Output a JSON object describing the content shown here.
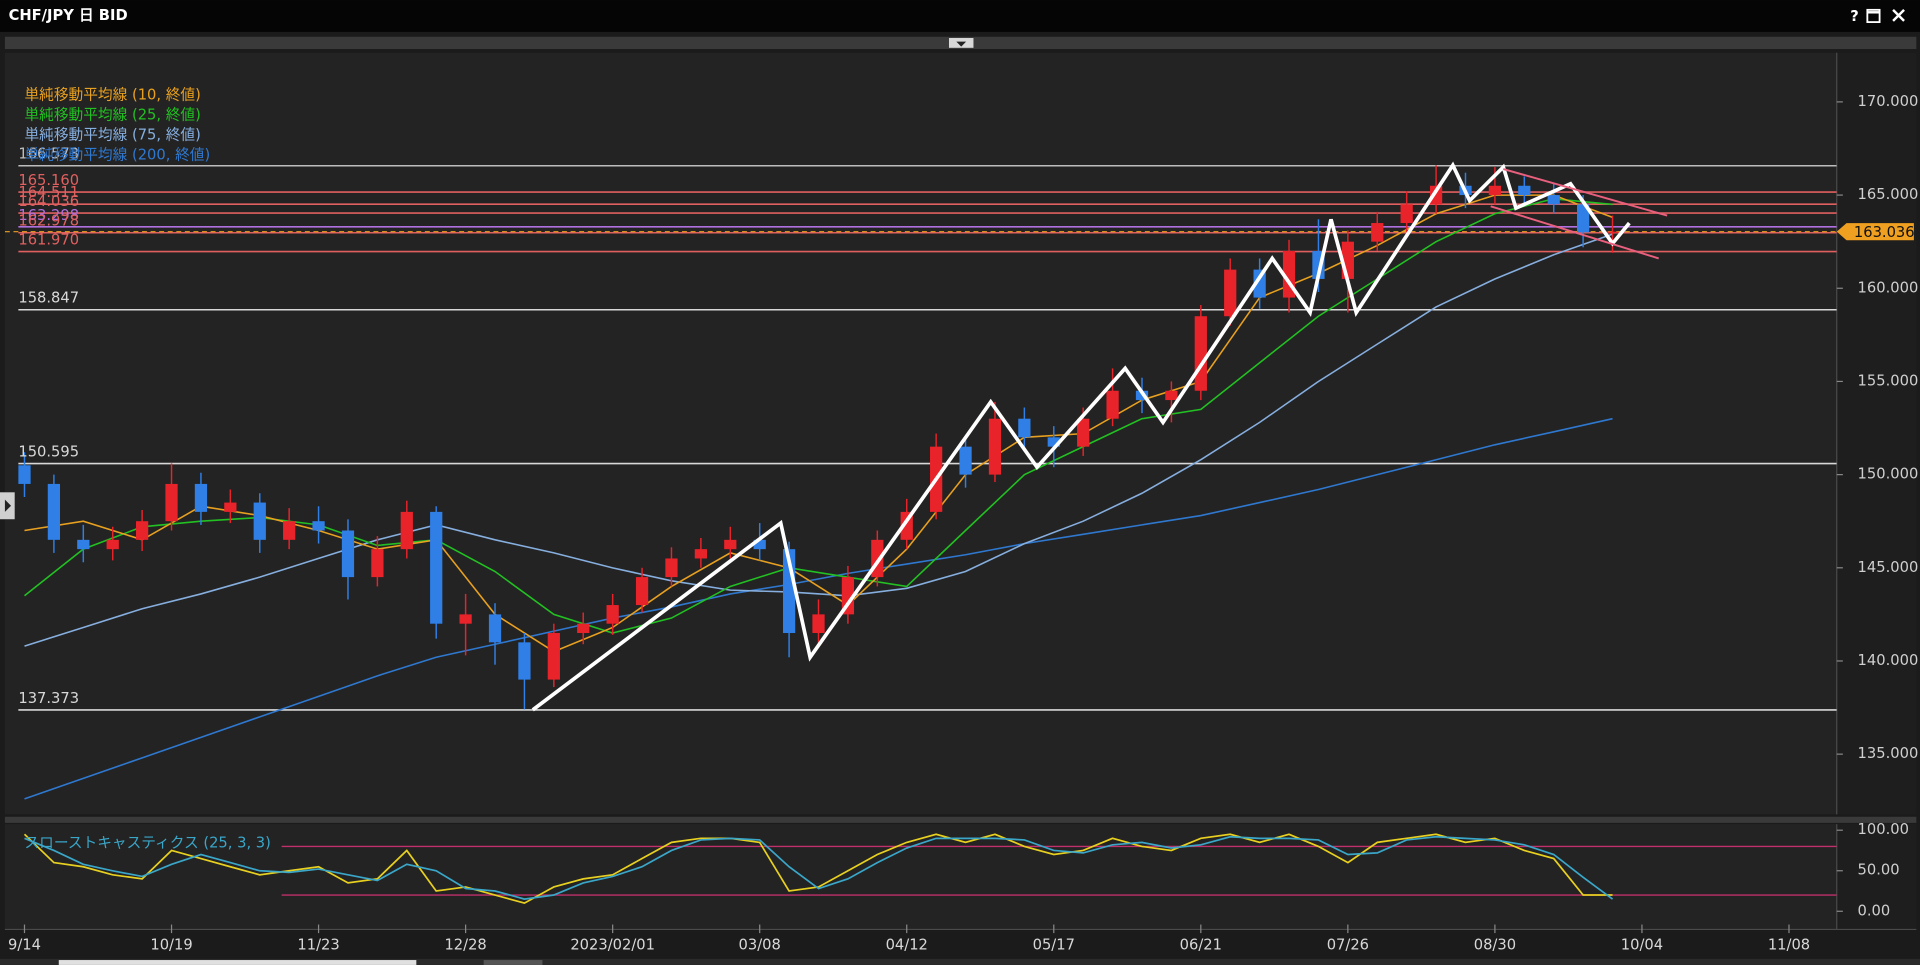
{
  "window": {
    "title": "CHF/JPY 日 BID",
    "help": "?"
  },
  "chart_data": [
    {
      "type": "candlestick",
      "up_color": "#e8232a",
      "down_color": "#2f7fe6",
      "x": [
        "09/14",
        "09/21",
        "09/28",
        "10/05",
        "10/12",
        "10/19",
        "10/26",
        "11/02",
        "11/09",
        "11/16",
        "11/23",
        "11/30",
        "12/07",
        "12/14",
        "12/21",
        "12/28",
        "01/04",
        "01/11",
        "01/18",
        "01/25",
        "02/01",
        "02/08",
        "02/15",
        "02/22",
        "03/01",
        "03/08",
        "03/15",
        "03/22",
        "03/29",
        "04/05",
        "04/12",
        "04/19",
        "04/26",
        "05/03",
        "05/10",
        "05/17",
        "05/24",
        "05/31",
        "06/07",
        "06/14",
        "06/21",
        "06/28",
        "07/05",
        "07/12",
        "07/19",
        "07/26",
        "08/02",
        "08/09",
        "08/16",
        "08/23",
        "08/30",
        "09/06",
        "09/13",
        "09/20",
        "09/27"
      ],
      "open": [
        150.5,
        149.5,
        146.5,
        146.0,
        146.5,
        147.5,
        149.5,
        148.0,
        148.5,
        146.5,
        147.5,
        147.0,
        144.5,
        146.0,
        148.0,
        142.0,
        142.5,
        141.0,
        139.0,
        141.5,
        142.0,
        143.0,
        144.5,
        145.5,
        146.0,
        146.5,
        146.0,
        141.5,
        142.5,
        144.5,
        146.5,
        148.0,
        151.5,
        150.0,
        153.0,
        152.0,
        151.5,
        153.0,
        154.5,
        154.0,
        154.5,
        158.5,
        161.0,
        159.5,
        162.0,
        160.5,
        162.5,
        163.5,
        164.5,
        165.5,
        165.0,
        165.5,
        165.0,
        164.5,
        163.0
      ],
      "high": [
        151.2,
        150.0,
        147.3,
        147.2,
        148.1,
        150.6,
        150.1,
        149.2,
        149.0,
        148.2,
        148.3,
        147.6,
        146.7,
        148.6,
        148.3,
        143.6,
        143.1,
        141.5,
        142.0,
        142.6,
        143.6,
        145.0,
        146.1,
        146.6,
        147.2,
        147.4,
        146.4,
        143.3,
        145.1,
        147.0,
        148.7,
        152.2,
        152.0,
        153.9,
        153.6,
        152.6,
        153.6,
        155.7,
        155.2,
        155.0,
        159.1,
        161.6,
        161.6,
        162.6,
        163.7,
        163.1,
        164.1,
        165.2,
        166.6,
        166.2,
        166.5,
        166.0,
        165.6,
        165.0,
        163.9
      ],
      "low": [
        148.8,
        145.8,
        145.3,
        145.4,
        145.9,
        147.0,
        147.3,
        147.4,
        145.8,
        146.0,
        146.3,
        143.3,
        144.0,
        145.5,
        141.2,
        140.3,
        139.8,
        137.4,
        138.6,
        140.9,
        141.4,
        142.6,
        144.0,
        145.0,
        145.5,
        145.4,
        140.2,
        140.8,
        142.0,
        144.0,
        146.0,
        147.6,
        149.3,
        149.6,
        151.3,
        150.4,
        151.0,
        152.6,
        153.3,
        152.8,
        154.0,
        158.0,
        158.9,
        158.7,
        159.8,
        158.7,
        162.0,
        163.0,
        164.0,
        164.3,
        164.5,
        164.4,
        164.0,
        162.2,
        161.9
      ],
      "close": [
        149.5,
        146.5,
        146.0,
        146.5,
        147.5,
        149.5,
        148.0,
        148.5,
        146.5,
        147.5,
        147.0,
        144.5,
        146.0,
        148.0,
        142.0,
        142.5,
        141.0,
        139.0,
        141.5,
        142.0,
        143.0,
        144.5,
        145.5,
        146.0,
        146.5,
        146.0,
        141.5,
        142.5,
        144.5,
        146.5,
        148.0,
        151.5,
        150.0,
        153.0,
        152.0,
        151.5,
        153.0,
        154.5,
        154.0,
        154.5,
        158.5,
        161.0,
        159.5,
        162.0,
        160.5,
        162.5,
        163.5,
        164.5,
        165.5,
        165.0,
        165.5,
        165.0,
        164.5,
        163.0,
        163.036
      ],
      "series": [
        {
          "name": "単純移動平均線 (10, 終値)",
          "color": "#e8a020",
          "x": [
            "09/14",
            "09/28",
            "10/12",
            "10/26",
            "11/09",
            "11/23",
            "12/07",
            "12/21",
            "01/04",
            "01/18",
            "02/01",
            "02/15",
            "03/01",
            "03/15",
            "03/29",
            "04/12",
            "04/26",
            "05/10",
            "05/24",
            "06/07",
            "06/21",
            "07/05",
            "07/19",
            "08/02",
            "08/16",
            "08/30",
            "09/13",
            "09/27"
          ],
          "values": [
            147.0,
            147.5,
            146.5,
            148.3,
            147.8,
            147.0,
            146.0,
            146.5,
            142.5,
            140.5,
            141.8,
            144.0,
            145.8,
            145.0,
            143.0,
            146.0,
            150.0,
            152.0,
            152.2,
            154.0,
            155.0,
            159.5,
            160.8,
            162.3,
            164.0,
            165.0,
            165.0,
            163.8
          ]
        },
        {
          "name": "単純移動平均線 (25, 終値)",
          "color": "#22c022",
          "x": [
            "09/14",
            "09/28",
            "10/12",
            "10/26",
            "11/09",
            "11/23",
            "12/07",
            "12/21",
            "01/04",
            "01/18",
            "02/01",
            "02/15",
            "03/01",
            "03/15",
            "03/29",
            "04/12",
            "04/26",
            "05/10",
            "05/24",
            "06/07",
            "06/21",
            "07/05",
            "07/19",
            "08/02",
            "08/16",
            "08/30",
            "09/13",
            "09/27"
          ],
          "values": [
            143.5,
            146.0,
            147.2,
            147.5,
            147.7,
            147.3,
            146.2,
            146.5,
            144.8,
            142.5,
            141.5,
            142.3,
            144.0,
            145.0,
            144.5,
            144.0,
            147.0,
            150.0,
            151.5,
            153.0,
            153.5,
            156.0,
            158.5,
            160.5,
            162.5,
            164.0,
            164.8,
            164.5
          ]
        },
        {
          "name": "単純移動平均線 (75, 終値)",
          "color": "#86aede",
          "x": [
            "09/14",
            "09/28",
            "10/12",
            "10/26",
            "11/09",
            "11/23",
            "12/07",
            "12/21",
            "01/04",
            "01/18",
            "02/01",
            "02/15",
            "03/01",
            "03/15",
            "03/29",
            "04/12",
            "04/26",
            "05/10",
            "05/24",
            "06/07",
            "06/21",
            "07/05",
            "07/19",
            "08/02",
            "08/16",
            "08/30",
            "09/13",
            "09/27"
          ],
          "values": [
            140.8,
            141.8,
            142.8,
            143.6,
            144.5,
            145.5,
            146.5,
            147.3,
            146.5,
            145.8,
            145.0,
            144.3,
            143.8,
            143.7,
            143.5,
            143.9,
            144.8,
            146.3,
            147.5,
            149.0,
            150.8,
            152.8,
            155.0,
            157.0,
            159.0,
            160.5,
            161.8,
            162.9
          ]
        },
        {
          "name": "単純移動平均線 (200, 終値)",
          "color": "#2f78d0",
          "x": [
            "09/14",
            "09/28",
            "10/12",
            "10/26",
            "11/09",
            "11/23",
            "12/07",
            "12/21",
            "01/04",
            "01/18",
            "02/01",
            "02/15",
            "03/01",
            "03/15",
            "03/29",
            "04/12",
            "04/26",
            "05/10",
            "05/24",
            "06/07",
            "06/21",
            "07/05",
            "07/19",
            "08/02",
            "08/16",
            "08/30",
            "09/13",
            "09/27"
          ],
          "values": [
            132.6,
            133.7,
            134.8,
            135.9,
            137.0,
            138.1,
            139.2,
            140.2,
            140.9,
            141.6,
            142.3,
            142.9,
            143.6,
            144.1,
            144.7,
            145.2,
            145.7,
            146.3,
            146.8,
            147.3,
            147.8,
            148.5,
            149.2,
            150.0,
            150.8,
            151.6,
            152.3,
            153.0
          ]
        }
      ],
      "levels": [
        {
          "value": 166.573,
          "label": "166.573",
          "color": "#bdbdbd"
        },
        {
          "value": 165.16,
          "label": "165.160",
          "color": "#e06060"
        },
        {
          "value": 164.511,
          "label": "164.511",
          "color": "#e06060"
        },
        {
          "value": 164.036,
          "label": "164.036",
          "color": "#e06060"
        },
        {
          "value": 163.298,
          "label": "163.298",
          "color": "#b070e0"
        },
        {
          "value": 162.978,
          "label": "162.978",
          "color": "#e06060"
        },
        {
          "value": 161.97,
          "label": "161.970",
          "color": "#e06060"
        },
        {
          "value": 158.847,
          "label": "158.847",
          "color": "#d8d8d8"
        },
        {
          "value": 150.595,
          "label": "150.595",
          "color": "#d8d8d8"
        },
        {
          "value": 137.373,
          "label": "137.373",
          "color": "#d8d8d8"
        }
      ],
      "trend_lines": [
        {
          "color": "#ffffff",
          "x": [
            "2023/01/13",
            "03/13",
            "03/20",
            "05/02",
            "05/13",
            "06/03",
            "06/12",
            "07/08",
            "07/17",
            "07/22",
            "07/28",
            "08/20",
            "08/24",
            "09/01",
            "09/04",
            "09/17",
            "09/27",
            "10/01"
          ],
          "values": [
            137.373,
            147.4,
            140.2,
            153.9,
            150.4,
            155.7,
            152.8,
            161.6,
            158.7,
            163.7,
            158.7,
            166.6,
            164.7,
            166.5,
            164.3,
            165.6,
            162.4,
            163.5
          ]
        },
        {
          "color": "#e8607e",
          "x": [
            "2023/09/01",
            "10/10"
          ],
          "values": [
            166.4,
            163.9
          ]
        },
        {
          "color": "#e8607e",
          "x": [
            "2023/08/29",
            "10/08"
          ],
          "values": [
            164.4,
            161.6
          ]
        }
      ],
      "last_price": {
        "value": 163.036,
        "label": "163.036",
        "color": "#f0a020"
      },
      "ylim": [
        131.77,
        172.64
      ],
      "yticks": [
        {
          "value": 135,
          "label": "135.000"
        },
        {
          "value": 140,
          "label": "140.000"
        },
        {
          "value": 145,
          "label": "145.000"
        },
        {
          "value": 150,
          "label": "150.000"
        },
        {
          "value": 155,
          "label": "155.000"
        },
        {
          "value": 160,
          "label": "160.000"
        },
        {
          "value": 165,
          "label": "165.000"
        },
        {
          "value": 170,
          "label": "170.000"
        }
      ],
      "xticks": [
        "9/14",
        "10/19",
        "11/23",
        "12/28",
        "2023/02/01",
        "03/08",
        "04/12",
        "05/17",
        "06/21",
        "07/26",
        "08/30",
        "10/04",
        "11/08"
      ],
      "grid": false
    },
    {
      "type": "line",
      "title": "スローストキャスティクス (25, 3, 3)",
      "title_color": "#3aa6c8",
      "x": [
        "09/14",
        "09/21",
        "09/28",
        "10/05",
        "10/12",
        "10/19",
        "10/26",
        "11/02",
        "11/09",
        "11/16",
        "11/23",
        "11/30",
        "12/07",
        "12/14",
        "12/21",
        "12/28",
        "01/04",
        "01/11",
        "01/18",
        "01/25",
        "02/01",
        "02/08",
        "02/15",
        "02/22",
        "03/01",
        "03/08",
        "03/15",
        "03/22",
        "03/29",
        "04/05",
        "04/12",
        "04/19",
        "04/26",
        "05/03",
        "05/10",
        "05/17",
        "05/24",
        "05/31",
        "06/07",
        "06/14",
        "06/21",
        "06/28",
        "07/05",
        "07/12",
        "07/19",
        "07/26",
        "08/02",
        "08/09",
        "08/16",
        "08/23",
        "08/30",
        "09/06",
        "09/13",
        "09/20",
        "09/27"
      ],
      "series": [
        {
          "color": "#e8d020",
          "values": [
            95,
            60,
            55,
            45,
            40,
            75,
            65,
            55,
            45,
            50,
            55,
            35,
            40,
            75,
            25,
            30,
            20,
            10,
            30,
            40,
            45,
            65,
            85,
            90,
            90,
            85,
            25,
            30,
            50,
            70,
            85,
            95,
            85,
            95,
            80,
            70,
            75,
            90,
            80,
            75,
            90,
            95,
            85,
            95,
            80,
            60,
            85,
            90,
            95,
            85,
            90,
            75,
            65,
            20,
            20
          ]
        },
        {
          "color": "#3aa6c8",
          "values": [
            90,
            75,
            58,
            50,
            43,
            58,
            70,
            60,
            50,
            48,
            52,
            45,
            38,
            58,
            50,
            28,
            25,
            15,
            20,
            35,
            43,
            55,
            75,
            88,
            90,
            88,
            55,
            28,
            40,
            60,
            78,
            90,
            90,
            90,
            88,
            75,
            72,
            82,
            85,
            78,
            82,
            92,
            90,
            90,
            88,
            70,
            72,
            88,
            92,
            90,
            88,
            82,
            70,
            42,
            15
          ]
        }
      ],
      "levels": [
        80,
        20
      ],
      "level_color": "#c0306a",
      "ylim": [
        -22.4,
        107.5
      ],
      "yticks": [
        {
          "value": 0,
          "label": "0.00"
        },
        {
          "value": 50,
          "label": "50.00"
        },
        {
          "value": 100,
          "label": "100.00"
        }
      ],
      "grid": false
    }
  ]
}
